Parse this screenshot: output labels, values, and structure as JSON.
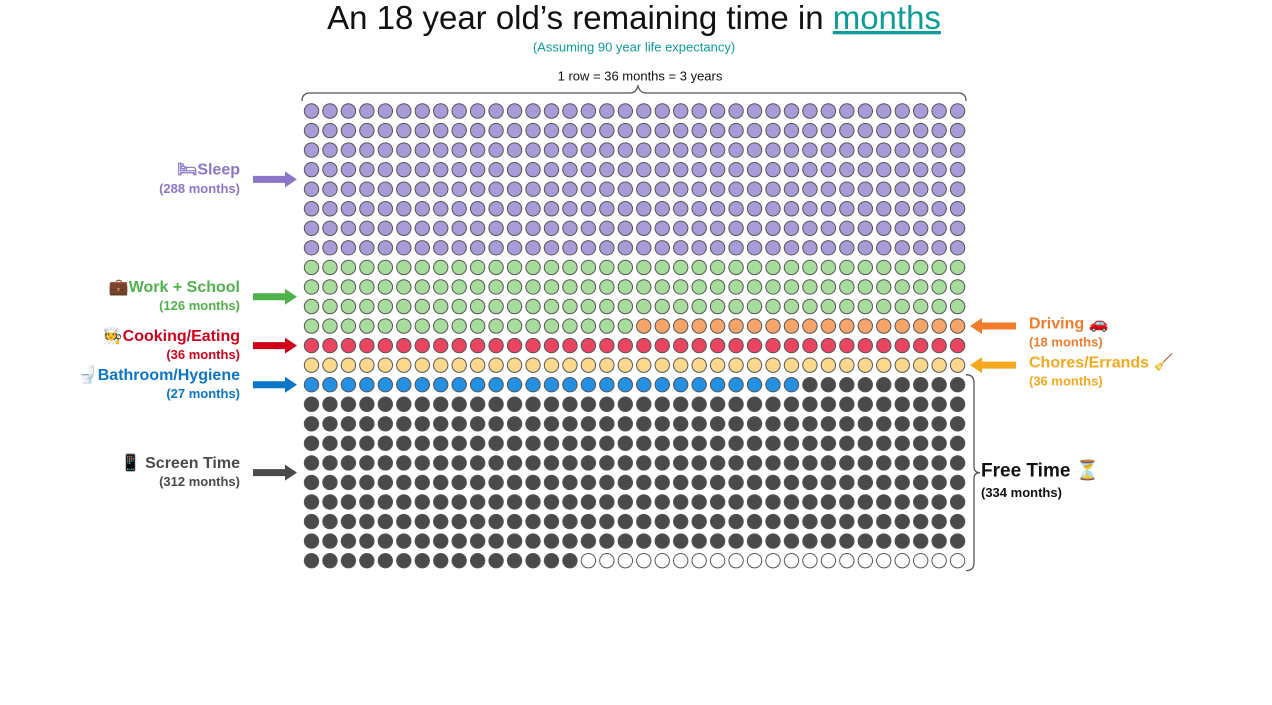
{
  "chart_data": {
    "type": "waffle",
    "title": "An 18 year old’s remaining time in ",
    "title_link": "months",
    "subtitle": "(Assuming 90 year life expectancy)",
    "row_note": "1 row = 36 months = 3 years",
    "columns": 36,
    "categories": [
      "🛏Sleep",
      "💼Work + School",
      "Driving 🚗",
      "🧑‍🍳Cooking/Eating",
      "Chores/Errands 🧹",
      "🚽Bathroom/Hygiene",
      "📱 Screen Time"
    ],
    "values": [
      288,
      126,
      18,
      36,
      36,
      27,
      312
    ],
    "value_labels": [
      "(288 months)",
      "(126 months)",
      "(18 months)",
      "(36 months)",
      "(36 months)",
      "(27 months)",
      "(312 months)"
    ],
    "sides": [
      "left",
      "left",
      "right",
      "left",
      "right",
      "left",
      "left"
    ],
    "colors": [
      "#a99ad8",
      "#a8dc9c",
      "#f6a46a",
      "#ea4560",
      "#fcd88c",
      "#2490e2",
      "#4a4a4a"
    ],
    "label_colors": [
      "#8b76c8",
      "#4fb24a",
      "#f07c2c",
      "#d0021b",
      "#f5a81e",
      "#0a76c8",
      "#4a4a4a"
    ],
    "free_time": {
      "label": "Free Time ⏳",
      "value": 334,
      "value_label": "(334 months)"
    }
  }
}
